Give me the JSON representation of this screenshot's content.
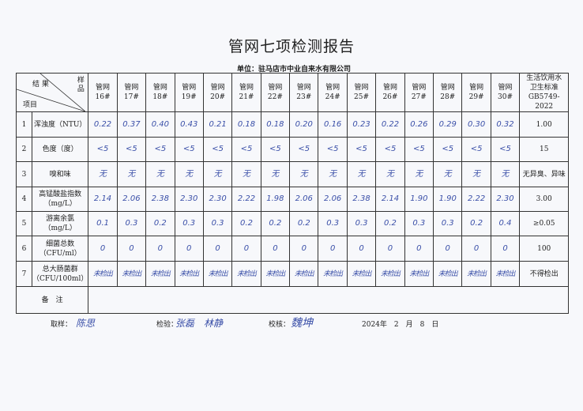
{
  "title": "管网七项检测报告",
  "unit": "单位：驻马店市中业自来水有限公司",
  "header": {
    "result": "结 果",
    "sample": "样品",
    "item": "项目",
    "standard_lines": [
      "生活饮用水",
      "卫生标准",
      "GB5749-2022"
    ]
  },
  "samples": [
    {
      "name": "管网",
      "no": "16#"
    },
    {
      "name": "管网",
      "no": "17#"
    },
    {
      "name": "管网",
      "no": "18#"
    },
    {
      "name": "管网",
      "no": "19#"
    },
    {
      "name": "管网",
      "no": "20#"
    },
    {
      "name": "管网",
      "no": "21#"
    },
    {
      "name": "管网",
      "no": "22#"
    },
    {
      "name": "管网",
      "no": "23#"
    },
    {
      "name": "管网",
      "no": "24#"
    },
    {
      "name": "管网",
      "no": "25#"
    },
    {
      "name": "管网",
      "no": "26#"
    },
    {
      "name": "管网",
      "no": "27#"
    },
    {
      "name": "管网",
      "no": "28#"
    },
    {
      "name": "管网",
      "no": "29#"
    },
    {
      "name": "管网",
      "no": "30#"
    }
  ],
  "rows": [
    {
      "no": "1",
      "item": "浑浊度（NTU）",
      "unit": "",
      "values": [
        "0.22",
        "0.37",
        "0.40",
        "0.43",
        "0.21",
        "0.18",
        "0.18",
        "0.20",
        "0.16",
        "0.23",
        "0.22",
        "0.26",
        "0.29",
        "0.30",
        "0.32"
      ],
      "standard": "1.00"
    },
    {
      "no": "2",
      "item": "色度（度）",
      "unit": "",
      "values": [
        "<5",
        "<5",
        "<5",
        "<5",
        "<5",
        "<5",
        "<5",
        "<5",
        "<5",
        "<5",
        "<5",
        "<5",
        "<5",
        "<5",
        "<5"
      ],
      "standard": "15"
    },
    {
      "no": "3",
      "item": "嗅和味",
      "unit": "",
      "values": [
        "无",
        "无",
        "无",
        "无",
        "无",
        "无",
        "无",
        "无",
        "无",
        "无",
        "无",
        "无",
        "无",
        "无",
        "无"
      ],
      "standard": "无异臭、异味"
    },
    {
      "no": "4",
      "item": "高锰酸盐指数",
      "unit": "（mg/L）",
      "values": [
        "2.14",
        "2.06",
        "2.38",
        "2.30",
        "2.30",
        "2.22",
        "1.98",
        "2.06",
        "2.06",
        "2.38",
        "2.14",
        "1.90",
        "1.90",
        "2.22",
        "2.30"
      ],
      "standard": "3.00"
    },
    {
      "no": "5",
      "item": "游离余氯",
      "unit": "（mg/L）",
      "values": [
        "0.1",
        "0.3",
        "0.2",
        "0.3",
        "0.3",
        "0.2",
        "0.2",
        "0.2",
        "0.3",
        "0.3",
        "0.2",
        "0.3",
        "0.3",
        "0.2",
        "0.4"
      ],
      "standard": "≥0.05"
    },
    {
      "no": "6",
      "item": "细菌总数",
      "unit": "（CFU/ml）",
      "values": [
        "0",
        "0",
        "0",
        "0",
        "0",
        "0",
        "0",
        "0",
        "0",
        "0",
        "0",
        "0",
        "0",
        "0",
        "0"
      ],
      "standard": "100"
    },
    {
      "no": "7",
      "item": "总大肠菌群",
      "unit": "（CFU/100ml）",
      "values": [
        "未检出",
        "未检出",
        "未检出",
        "未检出",
        "未检出",
        "未检出",
        "未检出",
        "未检出",
        "未检出",
        "未检出",
        "未检出",
        "未检出",
        "未检出",
        "未检出",
        "未检出"
      ],
      "standard": "不得检出"
    }
  ],
  "remarks_label": "备　注",
  "remarks": "",
  "footer": {
    "sampling_label": "取样：",
    "sampler": "陈思",
    "inspection_label": "检验：",
    "inspectors": "张磊　林静",
    "review_label": "校核：",
    "reviewer": "魏坤",
    "date": "2024年　2　月　8　日"
  }
}
